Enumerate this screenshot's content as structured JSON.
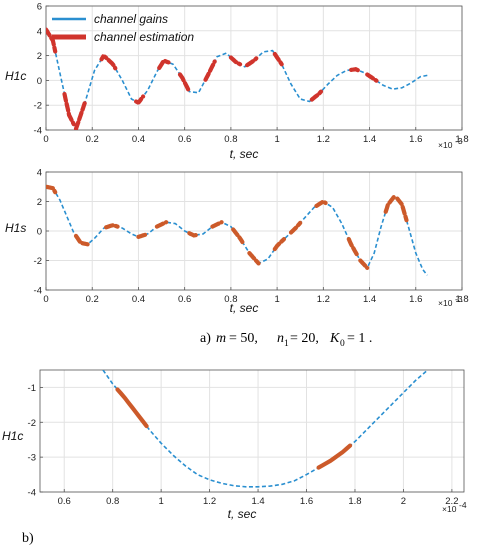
{
  "colors": {
    "gains": "#2a8fd0",
    "estimation": "#d0342c",
    "estimation_alt": "#cc5a2a",
    "grid": "#e2e2e2"
  },
  "captions": {
    "a": {
      "prefix": "a)",
      "m": "m",
      "m_val": " = 50,",
      "n": "n",
      "n_sub": "1",
      "n_val": " = 20,",
      "k": "K",
      "k_sub": "0",
      "k_val": " = 1 ."
    },
    "b": {
      "label": "b)"
    }
  },
  "chart_data": [
    {
      "type": "line",
      "ylabel": "H1c",
      "xlabel": "t, sec",
      "x_exponent": "×10",
      "x_exponent_power": "-3",
      "xlim": [
        0,
        1.8
      ],
      "ylim": [
        -4,
        6
      ],
      "xticks": [
        0,
        0.2,
        0.4,
        0.6,
        0.8,
        1,
        1.2,
        1.4,
        1.6,
        1.8
      ],
      "xtick_labels": [
        "0",
        "0.2",
        "0.4",
        "0.6",
        "0.8",
        "1",
        "1.2",
        "1.4",
        "1.6",
        "1.8"
      ],
      "yticks": [
        -4,
        -2,
        0,
        2,
        4,
        6
      ],
      "ytick_labels": [
        "-4",
        "-2",
        "0",
        "2",
        "4",
        "6"
      ],
      "grid": true,
      "legend": {
        "placement": "top-left",
        "entries": [
          "channel gains",
          "channel estimation"
        ]
      },
      "series": [
        {
          "name": "channel gains",
          "style": "dashed",
          "x": [
            0,
            0.03,
            0.06,
            0.1,
            0.13,
            0.17,
            0.21,
            0.25,
            0.29,
            0.33,
            0.37,
            0.4,
            0.44,
            0.48,
            0.51,
            0.55,
            0.59,
            0.62,
            0.66,
            0.7,
            0.74,
            0.78,
            0.82,
            0.86,
            0.9,
            0.94,
            0.98,
            1.02,
            1.06,
            1.1,
            1.14,
            1.18,
            1.22,
            1.26,
            1.3,
            1.34,
            1.38,
            1.42,
            1.46,
            1.5,
            1.54,
            1.58,
            1.62,
            1.65
          ],
          "y": [
            4.1,
            3.2,
            0.6,
            -2.8,
            -3.9,
            -1.7,
            0.8,
            2.0,
            1.3,
            0.0,
            -1.5,
            -1.8,
            -0.8,
            0.7,
            1.6,
            1.3,
            0.2,
            -0.9,
            -1.0,
            0.4,
            1.9,
            2.2,
            1.5,
            1.1,
            1.6,
            2.3,
            2.4,
            1.3,
            -0.3,
            -1.5,
            -1.7,
            -1.1,
            -0.3,
            0.4,
            0.8,
            0.9,
            0.6,
            0.1,
            -0.4,
            -0.7,
            -0.6,
            -0.2,
            0.3,
            0.4
          ]
        }
      ],
      "estimation_segments": [
        [
          0,
          0.04
        ],
        [
          0.08,
          0.12
        ],
        [
          0.13,
          0.17
        ],
        [
          0.24,
          0.3
        ],
        [
          0.39,
          0.42
        ],
        [
          0.49,
          0.53
        ],
        [
          0.58,
          0.62
        ],
        [
          0.69,
          0.73
        ],
        [
          0.8,
          0.84
        ],
        [
          0.87,
          0.91
        ],
        [
          0.99,
          1.02
        ],
        [
          1.15,
          1.19
        ],
        [
          1.32,
          1.36
        ],
        [
          1.39,
          1.43
        ]
      ]
    },
    {
      "type": "line",
      "ylabel": "H1s",
      "xlabel": "t, sec",
      "x_exponent": "×10",
      "x_exponent_power": "-3",
      "xlim": [
        0,
        1.8
      ],
      "ylim": [
        -4,
        4
      ],
      "xticks": [
        0,
        0.2,
        0.4,
        0.6,
        0.8,
        1,
        1.2,
        1.4,
        1.6,
        1.8
      ],
      "xtick_labels": [
        "0",
        "0.2",
        "0.4",
        "0.6",
        "0.8",
        "1",
        "1.2",
        "1.4",
        "1.6",
        "1.8"
      ],
      "yticks": [
        -4,
        -2,
        0,
        2,
        4
      ],
      "ytick_labels": [
        "-4",
        "-2",
        "0",
        "2",
        "4"
      ],
      "grid": true,
      "series": [
        {
          "name": "channel gains",
          "style": "dashed",
          "x": [
            0,
            0.03,
            0.06,
            0.09,
            0.12,
            0.15,
            0.18,
            0.21,
            0.25,
            0.29,
            0.33,
            0.37,
            0.4,
            0.44,
            0.48,
            0.52,
            0.56,
            0.6,
            0.64,
            0.68,
            0.72,
            0.76,
            0.8,
            0.84,
            0.88,
            0.92,
            0.96,
            1.0,
            1.04,
            1.08,
            1.12,
            1.16,
            1.2,
            1.24,
            1.28,
            1.32,
            1.36,
            1.39,
            1.42,
            1.45,
            1.48,
            1.51,
            1.54,
            1.57,
            1.6,
            1.63,
            1.65
          ],
          "y": [
            3.0,
            2.9,
            2.1,
            1.0,
            -0.1,
            -0.8,
            -0.9,
            -0.5,
            0.2,
            0.4,
            0.2,
            -0.2,
            -0.4,
            -0.2,
            0.3,
            0.6,
            0.5,
            0.0,
            -0.3,
            -0.2,
            0.3,
            0.6,
            0.3,
            -0.5,
            -1.5,
            -2.2,
            -1.9,
            -1.0,
            -0.4,
            0.2,
            0.9,
            1.6,
            2.0,
            1.6,
            0.5,
            -0.9,
            -2.0,
            -2.5,
            -1.5,
            0.3,
            1.8,
            2.4,
            1.8,
            0.2,
            -1.5,
            -2.6,
            -3.0
          ]
        }
      ],
      "estimation_segments": [
        [
          0,
          0.04
        ],
        [
          0.13,
          0.18
        ],
        [
          0.26,
          0.31
        ],
        [
          0.4,
          0.43
        ],
        [
          0.48,
          0.52
        ],
        [
          0.62,
          0.66
        ],
        [
          0.72,
          0.76
        ],
        [
          0.81,
          0.85
        ],
        [
          0.88,
          0.92
        ],
        [
          0.99,
          1.03
        ],
        [
          1.06,
          1.1
        ],
        [
          1.17,
          1.21
        ],
        [
          1.31,
          1.35
        ],
        [
          1.36,
          1.39
        ],
        [
          1.47,
          1.51
        ],
        [
          1.52,
          1.56
        ]
      ]
    },
    {
      "type": "line",
      "ylabel": "H1c",
      "xlabel": "t, sec",
      "x_exponent": "×10",
      "x_exponent_power": "-4",
      "xlim": [
        0.5,
        2.25
      ],
      "ylim": [
        -4,
        -0.5
      ],
      "xticks": [
        0.6,
        0.8,
        1,
        1.2,
        1.4,
        1.6,
        1.8,
        2,
        2.2
      ],
      "xtick_labels": [
        "0.6",
        "0.8",
        "1",
        "1.2",
        "1.4",
        "1.6",
        "1.8",
        "2",
        "2.2"
      ],
      "yticks": [
        -4,
        -3,
        -2,
        -1
      ],
      "ytick_labels": [
        "-4",
        "-3",
        "-2",
        "-1"
      ],
      "grid": true,
      "series": [
        {
          "name": "channel gains",
          "style": "dashed",
          "x": [
            0.76,
            0.8,
            0.85,
            0.9,
            0.95,
            1.0,
            1.05,
            1.1,
            1.15,
            1.2,
            1.25,
            1.3,
            1.35,
            1.4,
            1.45,
            1.5,
            1.55,
            1.6,
            1.65,
            1.7,
            1.75,
            1.8,
            1.85,
            1.9,
            1.95,
            2.0,
            2.05,
            2.1
          ],
          "y": [
            -0.5,
            -0.9,
            -1.3,
            -1.75,
            -2.2,
            -2.6,
            -2.95,
            -3.25,
            -3.5,
            -3.65,
            -3.75,
            -3.82,
            -3.85,
            -3.85,
            -3.83,
            -3.78,
            -3.68,
            -3.5,
            -3.3,
            -3.1,
            -2.85,
            -2.55,
            -2.2,
            -1.85,
            -1.5,
            -1.15,
            -0.8,
            -0.5
          ]
        }
      ],
      "estimation_segments": [
        [
          0.82,
          0.94
        ],
        [
          1.65,
          1.78
        ]
      ]
    }
  ]
}
